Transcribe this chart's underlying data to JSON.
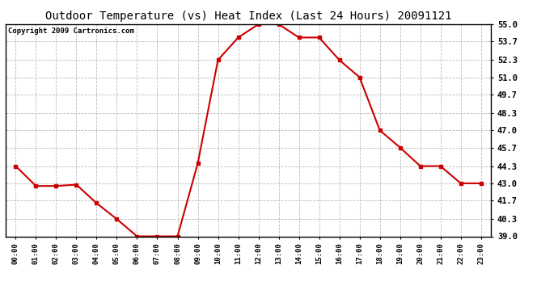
{
  "title": "Outdoor Temperature (vs) Heat Index (Last 24 Hours) 20091121",
  "copyright": "Copyright 2009 Cartronics.com",
  "x_labels": [
    "00:00",
    "01:00",
    "02:00",
    "03:00",
    "04:00",
    "05:00",
    "06:00",
    "07:00",
    "08:00",
    "09:00",
    "10:00",
    "11:00",
    "12:00",
    "13:00",
    "14:00",
    "15:00",
    "16:00",
    "17:00",
    "18:00",
    "19:00",
    "20:00",
    "21:00",
    "22:00",
    "23:00"
  ],
  "y_values": [
    44.3,
    42.8,
    42.8,
    42.9,
    41.5,
    40.3,
    39.0,
    39.0,
    39.0,
    44.5,
    52.3,
    54.0,
    55.0,
    55.0,
    54.0,
    54.0,
    52.3,
    51.0,
    47.0,
    45.7,
    44.3,
    44.3,
    43.0,
    43.0
  ],
  "line_color": "#cc0000",
  "marker": "s",
  "marker_size": 3,
  "ylim_min": 39.0,
  "ylim_max": 55.0,
  "yticks": [
    39.0,
    40.3,
    41.7,
    43.0,
    44.3,
    45.7,
    47.0,
    48.3,
    49.7,
    51.0,
    52.3,
    53.7,
    55.0
  ],
  "bg_color": "#ffffff",
  "grid_color": "#bbbbbb",
  "title_fontsize": 10,
  "copyright_fontsize": 6.5,
  "tick_fontsize": 6.5,
  "ytick_fontsize": 7.5
}
